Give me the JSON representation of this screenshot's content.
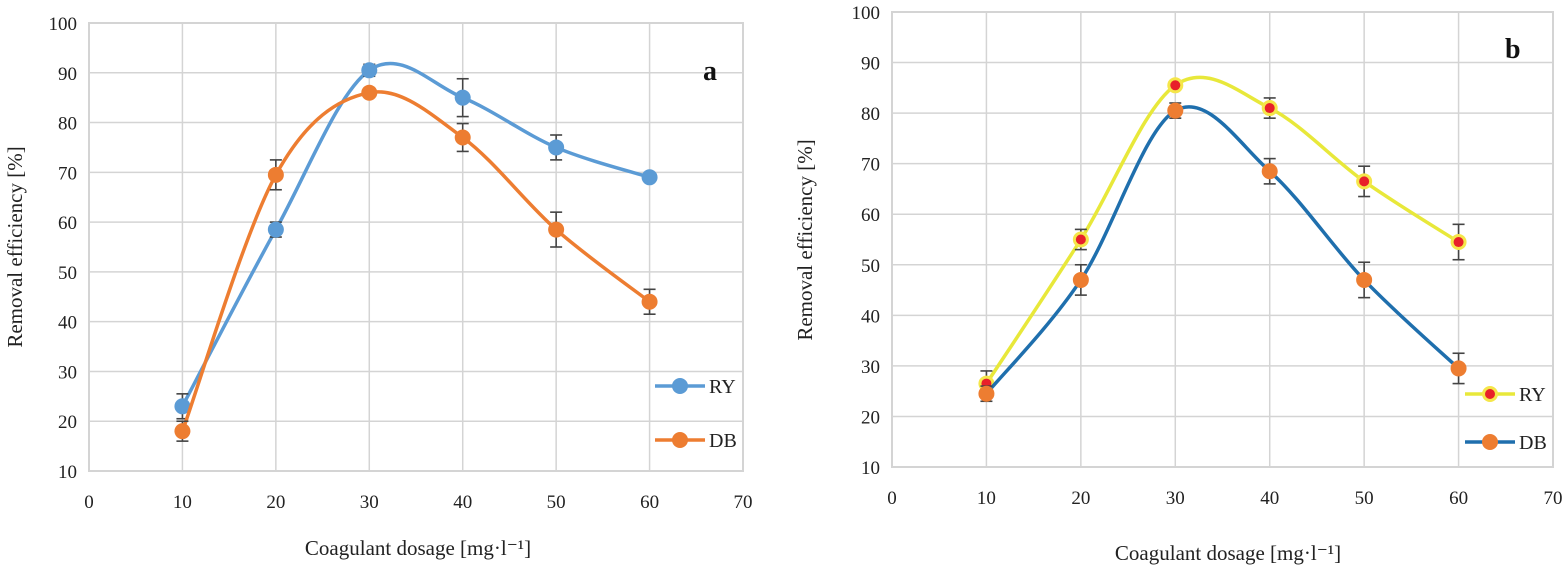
{
  "chart_data": [
    {
      "id": "a",
      "type": "line",
      "panel_label": "a",
      "title": "",
      "xlabel": "Coagulant dosage [mg·l⁻¹]",
      "ylabel": "Removal efficiency  [%]",
      "xlim": [
        0,
        70
      ],
      "ylim": [
        10,
        100
      ],
      "x_ticks": [
        0,
        10,
        20,
        30,
        40,
        50,
        60,
        70
      ],
      "y_ticks": [
        10,
        20,
        30,
        40,
        50,
        60,
        70,
        80,
        90,
        100
      ],
      "grid": true,
      "smooth": true,
      "legend_position": "bottom-right",
      "x": [
        10,
        20,
        30,
        40,
        50,
        60
      ],
      "series": [
        {
          "name": "RY",
          "line_color": "#5b9bd5",
          "marker_color": "#5b9bd5",
          "marker_inner_color": "",
          "values": [
            23,
            58.5,
            90.5,
            85,
            75,
            69
          ],
          "errors": [
            2.5,
            1.5,
            1.2,
            3.8,
            2.5,
            0
          ]
        },
        {
          "name": "DB",
          "line_color": "#ed7d31",
          "marker_color": "#ed7d31",
          "marker_inner_color": "",
          "values": [
            18,
            69.5,
            86,
            77,
            58.5,
            44
          ],
          "errors": [
            2,
            3,
            0,
            2.8,
            3.5,
            2.5
          ]
        }
      ]
    },
    {
      "id": "b",
      "type": "line",
      "panel_label": "b",
      "title": "",
      "xlabel": "Coagulant dosage [mg·l⁻¹]",
      "ylabel": "Removal efficiency [%]",
      "xlim": [
        0,
        70
      ],
      "ylim": [
        10,
        100
      ],
      "x_ticks": [
        0,
        10,
        20,
        30,
        40,
        50,
        60,
        70
      ],
      "y_ticks": [
        10,
        20,
        30,
        40,
        50,
        60,
        70,
        80,
        90,
        100
      ],
      "grid": true,
      "smooth": true,
      "legend_position": "bottom-right",
      "x": [
        10,
        20,
        30,
        40,
        50,
        60
      ],
      "series": [
        {
          "name": "RY",
          "line_color": "#e8e83a",
          "marker_color": "#f5e64a",
          "marker_inner_color": "#e8202a",
          "values": [
            26.5,
            55,
            85.5,
            81,
            66.5,
            54.5
          ],
          "errors": [
            2.5,
            2,
            0,
            2,
            3,
            3.5
          ]
        },
        {
          "name": "DB",
          "line_color": "#1f6fad",
          "marker_color": "#ed7d31",
          "marker_inner_color": "",
          "values": [
            24.5,
            47,
            80.5,
            68.5,
            47,
            29.5
          ],
          "errors": [
            1.5,
            3,
            1.5,
            2.5,
            3.5,
            3
          ]
        }
      ]
    }
  ]
}
